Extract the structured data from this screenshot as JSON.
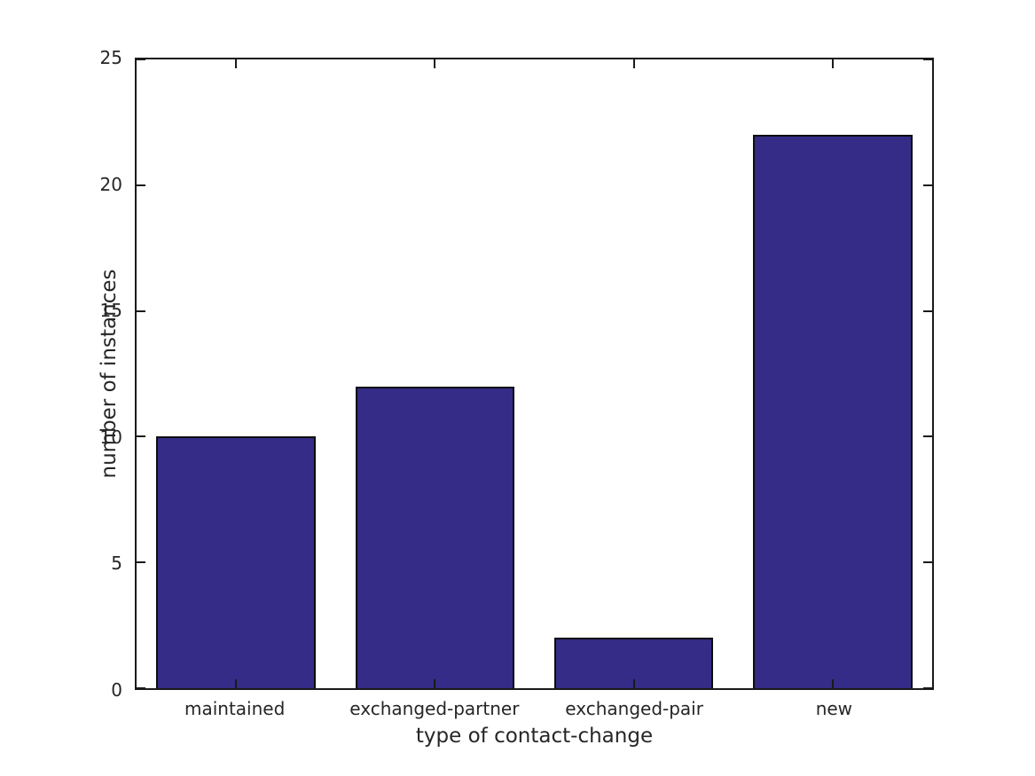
{
  "chart_data": {
    "type": "bar",
    "categories": [
      "maintained",
      "exchanged-partner",
      "exchanged-pair",
      "new"
    ],
    "values": [
      10,
      12,
      2,
      22
    ],
    "title": "",
    "xlabel": "type of contact-change",
    "ylabel": "number of instances",
    "ylim": [
      0,
      25
    ],
    "yticks": [
      0,
      5,
      10,
      15,
      20,
      25
    ],
    "bar_width_fraction": 0.8,
    "grid": false,
    "legend_position": "none",
    "bar_color": "#342C87",
    "bar_edge_color": "#0d0d0d",
    "axis_color": "#1a1a1a",
    "text_color": "#262626",
    "background_color": "#ffffff"
  }
}
